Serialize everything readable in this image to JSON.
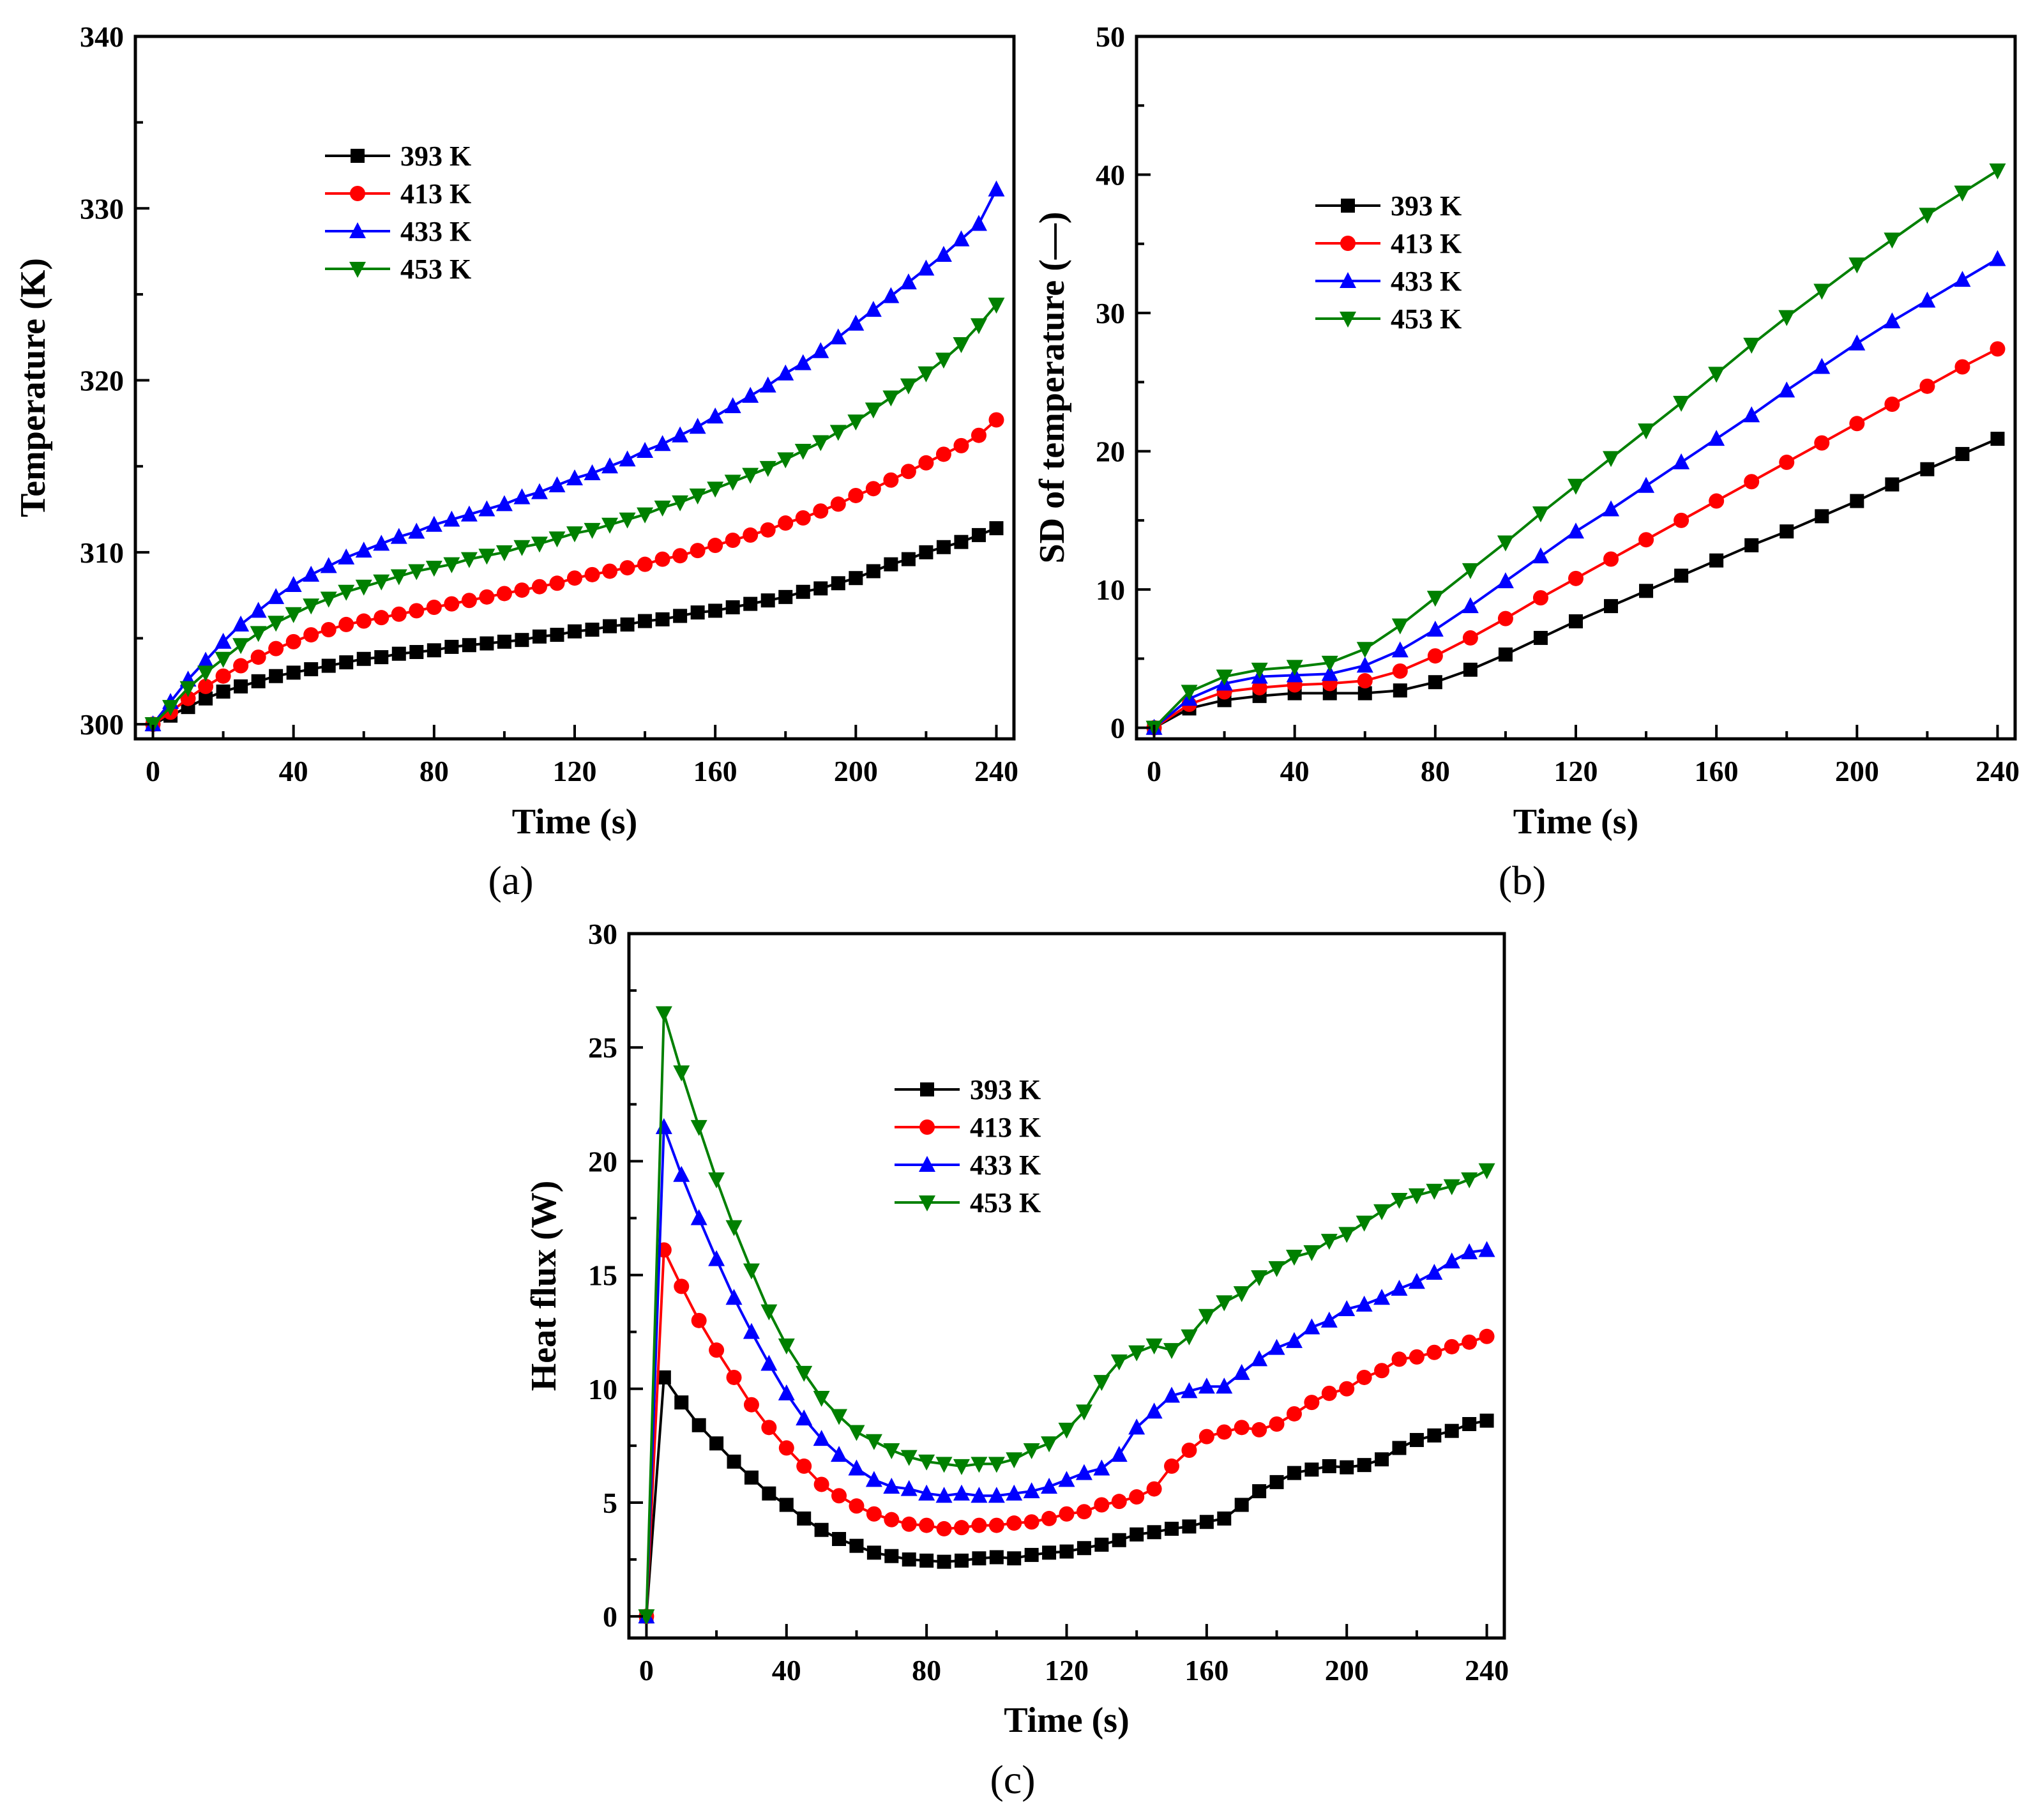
{
  "chart_data": [
    {
      "panel": "(a)",
      "type": "line",
      "title": "",
      "xlabel": "Time (s)",
      "ylabel": "Temperature (K)",
      "xlim": [
        -5,
        245
      ],
      "ylim": [
        299.15,
        340
      ],
      "xticks": [
        0,
        40,
        80,
        120,
        160,
        200,
        240
      ],
      "yticks": [
        300,
        310,
        320,
        330,
        340
      ],
      "x_start": 0,
      "x_step": 5,
      "legend_position": "upper-left",
      "grid": false,
      "series": [
        {
          "name": "393 K",
          "color": "#000000",
          "marker": "square",
          "values": [
            300.0,
            300.5,
            301.0,
            301.5,
            301.9,
            302.2,
            302.5,
            302.8,
            303.0,
            303.2,
            303.4,
            303.6,
            303.8,
            303.9,
            304.1,
            304.2,
            304.3,
            304.5,
            304.6,
            304.7,
            304.8,
            304.9,
            305.1,
            305.2,
            305.4,
            305.5,
            305.7,
            305.8,
            306.0,
            306.1,
            306.3,
            306.5,
            306.6,
            306.8,
            307.0,
            307.2,
            307.4,
            307.7,
            307.9,
            308.2,
            308.5,
            308.9,
            309.3,
            309.6,
            310.0,
            310.3,
            310.6,
            311.0,
            311.4
          ]
        },
        {
          "name": "413 K",
          "color": "#ff0000",
          "marker": "circle",
          "values": [
            300.0,
            300.7,
            301.5,
            302.2,
            302.8,
            303.4,
            303.9,
            304.4,
            304.8,
            305.2,
            305.5,
            305.8,
            306.0,
            306.2,
            306.4,
            306.6,
            306.8,
            307.0,
            307.2,
            307.4,
            307.6,
            307.8,
            308.0,
            308.2,
            308.5,
            308.7,
            308.9,
            309.1,
            309.3,
            309.6,
            309.8,
            310.1,
            310.4,
            310.7,
            311.0,
            311.3,
            311.7,
            312.0,
            312.4,
            312.8,
            313.3,
            313.7,
            314.2,
            314.7,
            315.2,
            315.7,
            316.2,
            316.8,
            317.7
          ]
        },
        {
          "name": "433 K",
          "color": "#0000ff",
          "marker": "triangle-up",
          "values": [
            300.0,
            301.3,
            302.6,
            303.7,
            304.8,
            305.8,
            306.6,
            307.4,
            308.1,
            308.7,
            309.2,
            309.7,
            310.1,
            310.5,
            310.9,
            311.2,
            311.6,
            311.9,
            312.2,
            312.5,
            312.8,
            313.2,
            313.5,
            313.9,
            314.3,
            314.6,
            315.0,
            315.4,
            315.9,
            316.3,
            316.8,
            317.3,
            317.9,
            318.5,
            319.1,
            319.7,
            320.4,
            321.0,
            321.7,
            322.5,
            323.3,
            324.1,
            324.9,
            325.7,
            326.5,
            327.3,
            328.2,
            329.1,
            331.1
          ]
        },
        {
          "name": "453 K",
          "color": "#008000",
          "marker": "triangle-down",
          "values": [
            300.0,
            301.0,
            302.1,
            303.0,
            303.8,
            304.6,
            305.3,
            305.9,
            306.4,
            306.9,
            307.3,
            307.7,
            308.0,
            308.3,
            308.6,
            308.9,
            309.1,
            309.3,
            309.6,
            309.8,
            310.0,
            310.3,
            310.5,
            310.8,
            311.1,
            311.3,
            311.6,
            311.9,
            312.2,
            312.6,
            312.9,
            313.3,
            313.7,
            314.1,
            314.5,
            314.9,
            315.4,
            315.9,
            316.4,
            317.0,
            317.6,
            318.3,
            319.0,
            319.7,
            320.4,
            321.2,
            322.1,
            323.2,
            324.4
          ]
        }
      ]
    },
    {
      "panel": "(b)",
      "type": "line",
      "title": "",
      "xlabel": "Time (s)",
      "ylabel": "SD of temperature (—)",
      "xlim": [
        -5,
        245
      ],
      "ylim": [
        -0.8,
        50
      ],
      "xticks": [
        0,
        40,
        80,
        120,
        160,
        200,
        240
      ],
      "yticks": [
        0,
        10,
        20,
        30,
        40,
        50
      ],
      "x_start": 0,
      "x_step": 10,
      "legend_position": "upper-left",
      "grid": false,
      "series": [
        {
          "name": "393 K",
          "color": "#000000",
          "marker": "square",
          "values": [
            0,
            1.4,
            2.0,
            2.3,
            2.5,
            2.5,
            2.5,
            2.7,
            3.3,
            4.2,
            5.3,
            6.5,
            7.7,
            8.8,
            9.9,
            11.0,
            12.1,
            13.2,
            14.2,
            15.3,
            16.4,
            17.6,
            18.7,
            19.8,
            20.9
          ]
        },
        {
          "name": "413 K",
          "color": "#ff0000",
          "marker": "circle",
          "values": [
            0,
            1.7,
            2.6,
            2.9,
            3.1,
            3.2,
            3.4,
            4.1,
            5.2,
            6.5,
            7.9,
            9.4,
            10.8,
            12.2,
            13.6,
            15.0,
            16.4,
            17.8,
            19.2,
            20.6,
            22.0,
            23.4,
            24.7,
            26.1,
            27.4
          ]
        },
        {
          "name": "433 K",
          "color": "#0000ff",
          "marker": "triangle-up",
          "values": [
            0,
            2.1,
            3.2,
            3.7,
            3.8,
            3.9,
            4.5,
            5.6,
            7.1,
            8.8,
            10.6,
            12.4,
            14.2,
            15.8,
            17.5,
            19.2,
            20.9,
            22.6,
            24.4,
            26.1,
            27.8,
            29.4,
            30.9,
            32.4,
            33.9
          ]
        },
        {
          "name": "453 K",
          "color": "#008000",
          "marker": "triangle-down",
          "values": [
            0,
            2.6,
            3.7,
            4.2,
            4.4,
            4.7,
            5.7,
            7.4,
            9.4,
            11.4,
            13.4,
            15.5,
            17.5,
            19.5,
            21.5,
            23.5,
            25.6,
            27.7,
            29.7,
            31.6,
            33.5,
            35.3,
            37.1,
            38.7,
            40.3
          ]
        }
      ]
    },
    {
      "panel": "(c)",
      "type": "line",
      "title": "",
      "xlabel": "Time (s)",
      "ylabel": "Heat flux (W)",
      "xlim": [
        -5,
        245
      ],
      "ylim": [
        -0.95,
        30
      ],
      "xticks": [
        0,
        40,
        80,
        120,
        160,
        200,
        240
      ],
      "yticks": [
        0,
        5,
        10,
        15,
        20,
        25,
        30
      ],
      "x_start": 0,
      "x_step": 5,
      "legend_position": "upper-center",
      "grid": false,
      "series": [
        {
          "name": "393 K",
          "color": "#000000",
          "marker": "square",
          "values": [
            0,
            10.5,
            9.4,
            8.4,
            7.6,
            6.8,
            6.1,
            5.4,
            4.9,
            4.3,
            3.8,
            3.4,
            3.1,
            2.8,
            2.65,
            2.5,
            2.45,
            2.4,
            2.45,
            2.55,
            2.6,
            2.55,
            2.7,
            2.8,
            2.85,
            3.0,
            3.15,
            3.35,
            3.6,
            3.7,
            3.85,
            3.95,
            4.15,
            4.3,
            4.9,
            5.5,
            5.9,
            6.3,
            6.45,
            6.6,
            6.55,
            6.65,
            6.9,
            7.4,
            7.75,
            7.95,
            8.15,
            8.45,
            8.6
          ]
        },
        {
          "name": "413 K",
          "color": "#ff0000",
          "marker": "circle",
          "values": [
            0,
            16.1,
            14.5,
            13.0,
            11.7,
            10.5,
            9.3,
            8.3,
            7.4,
            6.6,
            5.8,
            5.3,
            4.85,
            4.5,
            4.25,
            4.05,
            4.0,
            3.85,
            3.9,
            4.0,
            4.0,
            4.1,
            4.15,
            4.3,
            4.5,
            4.6,
            4.9,
            5.05,
            5.25,
            5.6,
            6.6,
            7.3,
            7.9,
            8.1,
            8.3,
            8.2,
            8.45,
            8.9,
            9.4,
            9.8,
            10.0,
            10.5,
            10.8,
            11.3,
            11.4,
            11.6,
            11.85,
            12.05,
            12.3
          ]
        },
        {
          "name": "433 K",
          "color": "#0000ff",
          "marker": "triangle-up",
          "values": [
            0,
            21.5,
            19.4,
            17.5,
            15.7,
            14.0,
            12.5,
            11.1,
            9.8,
            8.7,
            7.8,
            7.1,
            6.5,
            6.0,
            5.7,
            5.6,
            5.4,
            5.3,
            5.4,
            5.3,
            5.3,
            5.4,
            5.5,
            5.7,
            6.0,
            6.3,
            6.5,
            7.1,
            8.3,
            9.0,
            9.7,
            9.9,
            10.1,
            10.1,
            10.7,
            11.3,
            11.8,
            12.1,
            12.7,
            13.0,
            13.5,
            13.7,
            14.0,
            14.4,
            14.7,
            15.1,
            15.6,
            16.0,
            16.1
          ]
        },
        {
          "name": "453 K",
          "color": "#008000",
          "marker": "triangle-down",
          "values": [
            0,
            26.5,
            23.9,
            21.5,
            19.2,
            17.1,
            15.2,
            13.4,
            11.9,
            10.7,
            9.6,
            8.8,
            8.1,
            7.7,
            7.3,
            7.0,
            6.8,
            6.7,
            6.6,
            6.7,
            6.7,
            6.9,
            7.3,
            7.6,
            8.2,
            9.0,
            10.3,
            11.2,
            11.6,
            11.9,
            11.7,
            12.3,
            13.2,
            13.8,
            14.2,
            14.9,
            15.3,
            15.8,
            16.0,
            16.5,
            16.8,
            17.3,
            17.8,
            18.3,
            18.5,
            18.7,
            18.9,
            19.2,
            19.6
          ]
        }
      ]
    }
  ]
}
